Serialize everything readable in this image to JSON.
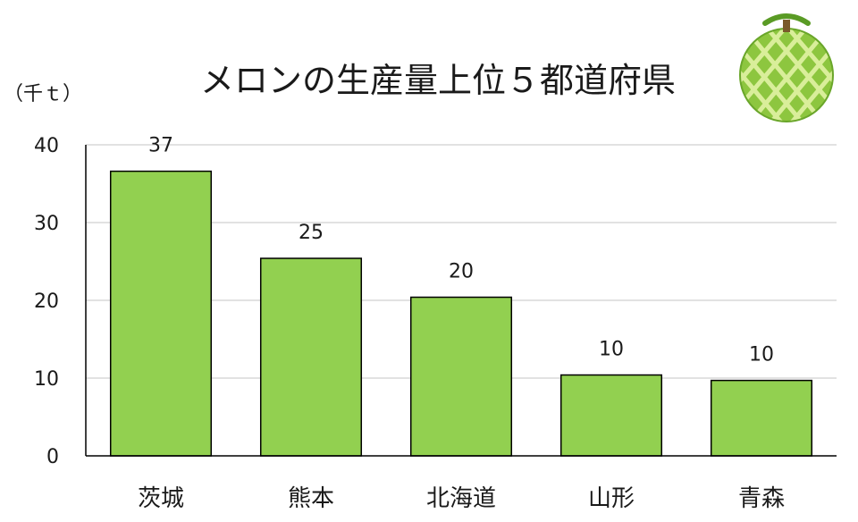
{
  "chart_data": {
    "type": "bar",
    "title": "メロンの生産量上位５都道府県",
    "unit_label": "（千ｔ）",
    "categories": [
      "茨城",
      "熊本",
      "北海道",
      "山形",
      "青森"
    ],
    "values": [
      36.6,
      25.4,
      20.4,
      10.4,
      9.7
    ],
    "data_labels": [
      "37",
      "25",
      "20",
      "10",
      "10"
    ],
    "ylim": [
      0,
      40
    ],
    "yticks": [
      "0",
      "10",
      "20",
      "30",
      "40"
    ],
    "grid": true,
    "bar_color": "#92d050",
    "bar_outline": "#000000",
    "icon": "melon-icon"
  }
}
